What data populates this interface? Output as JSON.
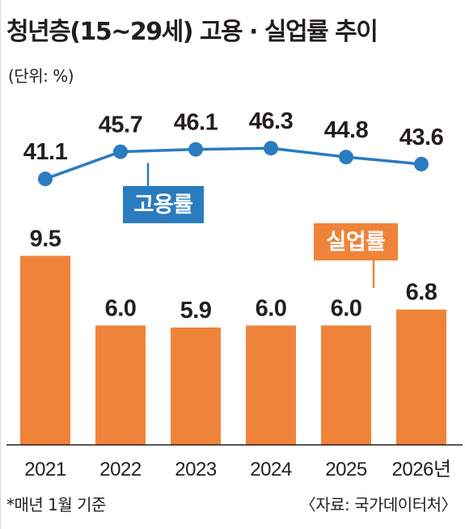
{
  "title": "청년층(15~29세) 고용 · 실업률 추이",
  "unit": "(단위: %)",
  "footnote": "*매년 1월 기준",
  "source": "〈자료: 국가데이터처〉",
  "colors": {
    "line": "#2b7bbf",
    "bar": "#f0833a",
    "axis": "#231f20",
    "text": "#231f20"
  },
  "chart_data": {
    "type": "bar+line",
    "categories": [
      "2021",
      "2022",
      "2023",
      "2024",
      "2025",
      "2026년"
    ],
    "series": [
      {
        "name": "고용률",
        "type": "line",
        "values": [
          41.1,
          45.7,
          46.1,
          46.3,
          44.8,
          43.6
        ]
      },
      {
        "name": "실업률",
        "type": "bar",
        "values": [
          9.5,
          6.0,
          5.9,
          6.0,
          6.0,
          6.8
        ]
      }
    ],
    "value_labels": {
      "고용률": [
        "41.1",
        "45.7",
        "46.1",
        "46.3",
        "44.8",
        "43.6"
      ],
      "실업률": [
        "9.5",
        "6.0",
        "5.9",
        "6.0",
        "6.0",
        "6.8"
      ]
    },
    "legend": [
      "고용률",
      "실업률"
    ],
    "title": "청년층(15~29세) 고용 · 실업률 추이",
    "ylabel": "(단위: %)",
    "grid": false
  }
}
